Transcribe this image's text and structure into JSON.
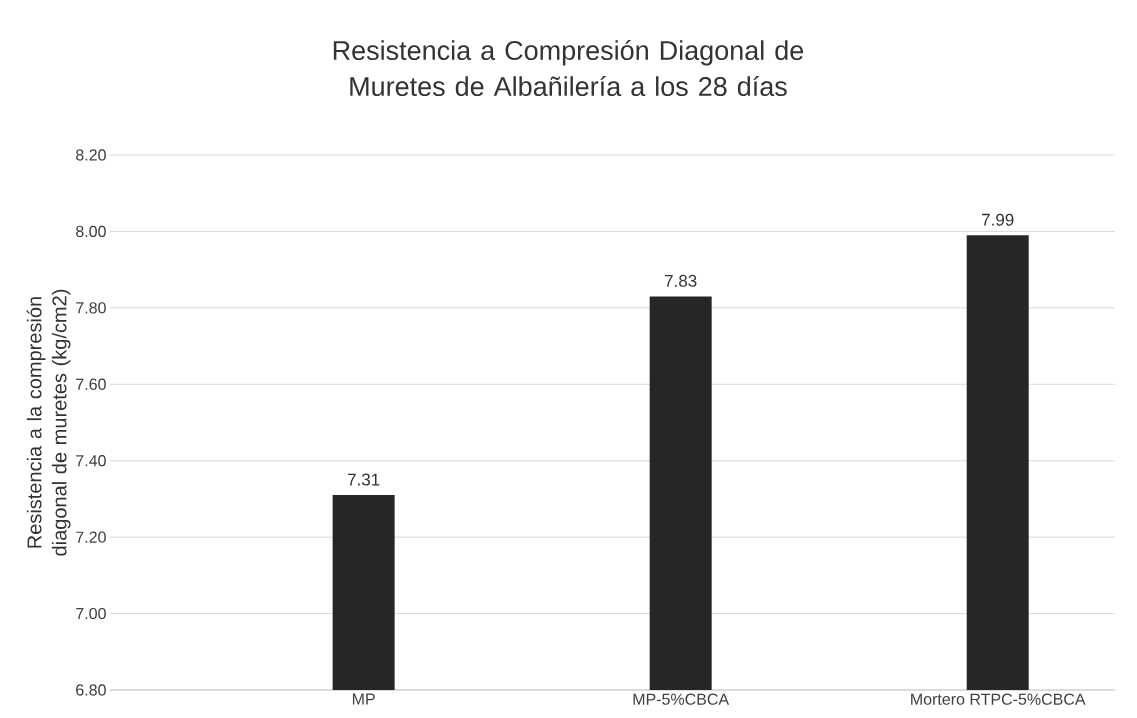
{
  "chart_data": {
    "type": "bar",
    "title": "Resistencia a Compresión  Diagonal de Muretes de Albañilería a los 28 días",
    "ylabel": "Resistencia a la compresión diagonal de muretes (kg/cm2)",
    "categories": [
      "MP",
      "MP-5%CBCA",
      "Mortero RTPC-5%CBCA"
    ],
    "values": [
      7.31,
      7.83,
      7.99
    ],
    "color": "#262626",
    "ylim": [
      6.8,
      8.2
    ],
    "yticks": [
      {
        "value": 6.8,
        "label": "6.80"
      },
      {
        "value": 7.0,
        "label": "7.00"
      },
      {
        "value": 7.2,
        "label": "7.20"
      },
      {
        "value": 7.4,
        "label": "7.40"
      },
      {
        "value": 7.6,
        "label": "7.60"
      },
      {
        "value": 7.8,
        "label": "7.80"
      },
      {
        "value": 8.0,
        "label": "8.00"
      },
      {
        "value": 8.2,
        "label": "8.20"
      }
    ],
    "grid": "y",
    "data_labels": true
  }
}
